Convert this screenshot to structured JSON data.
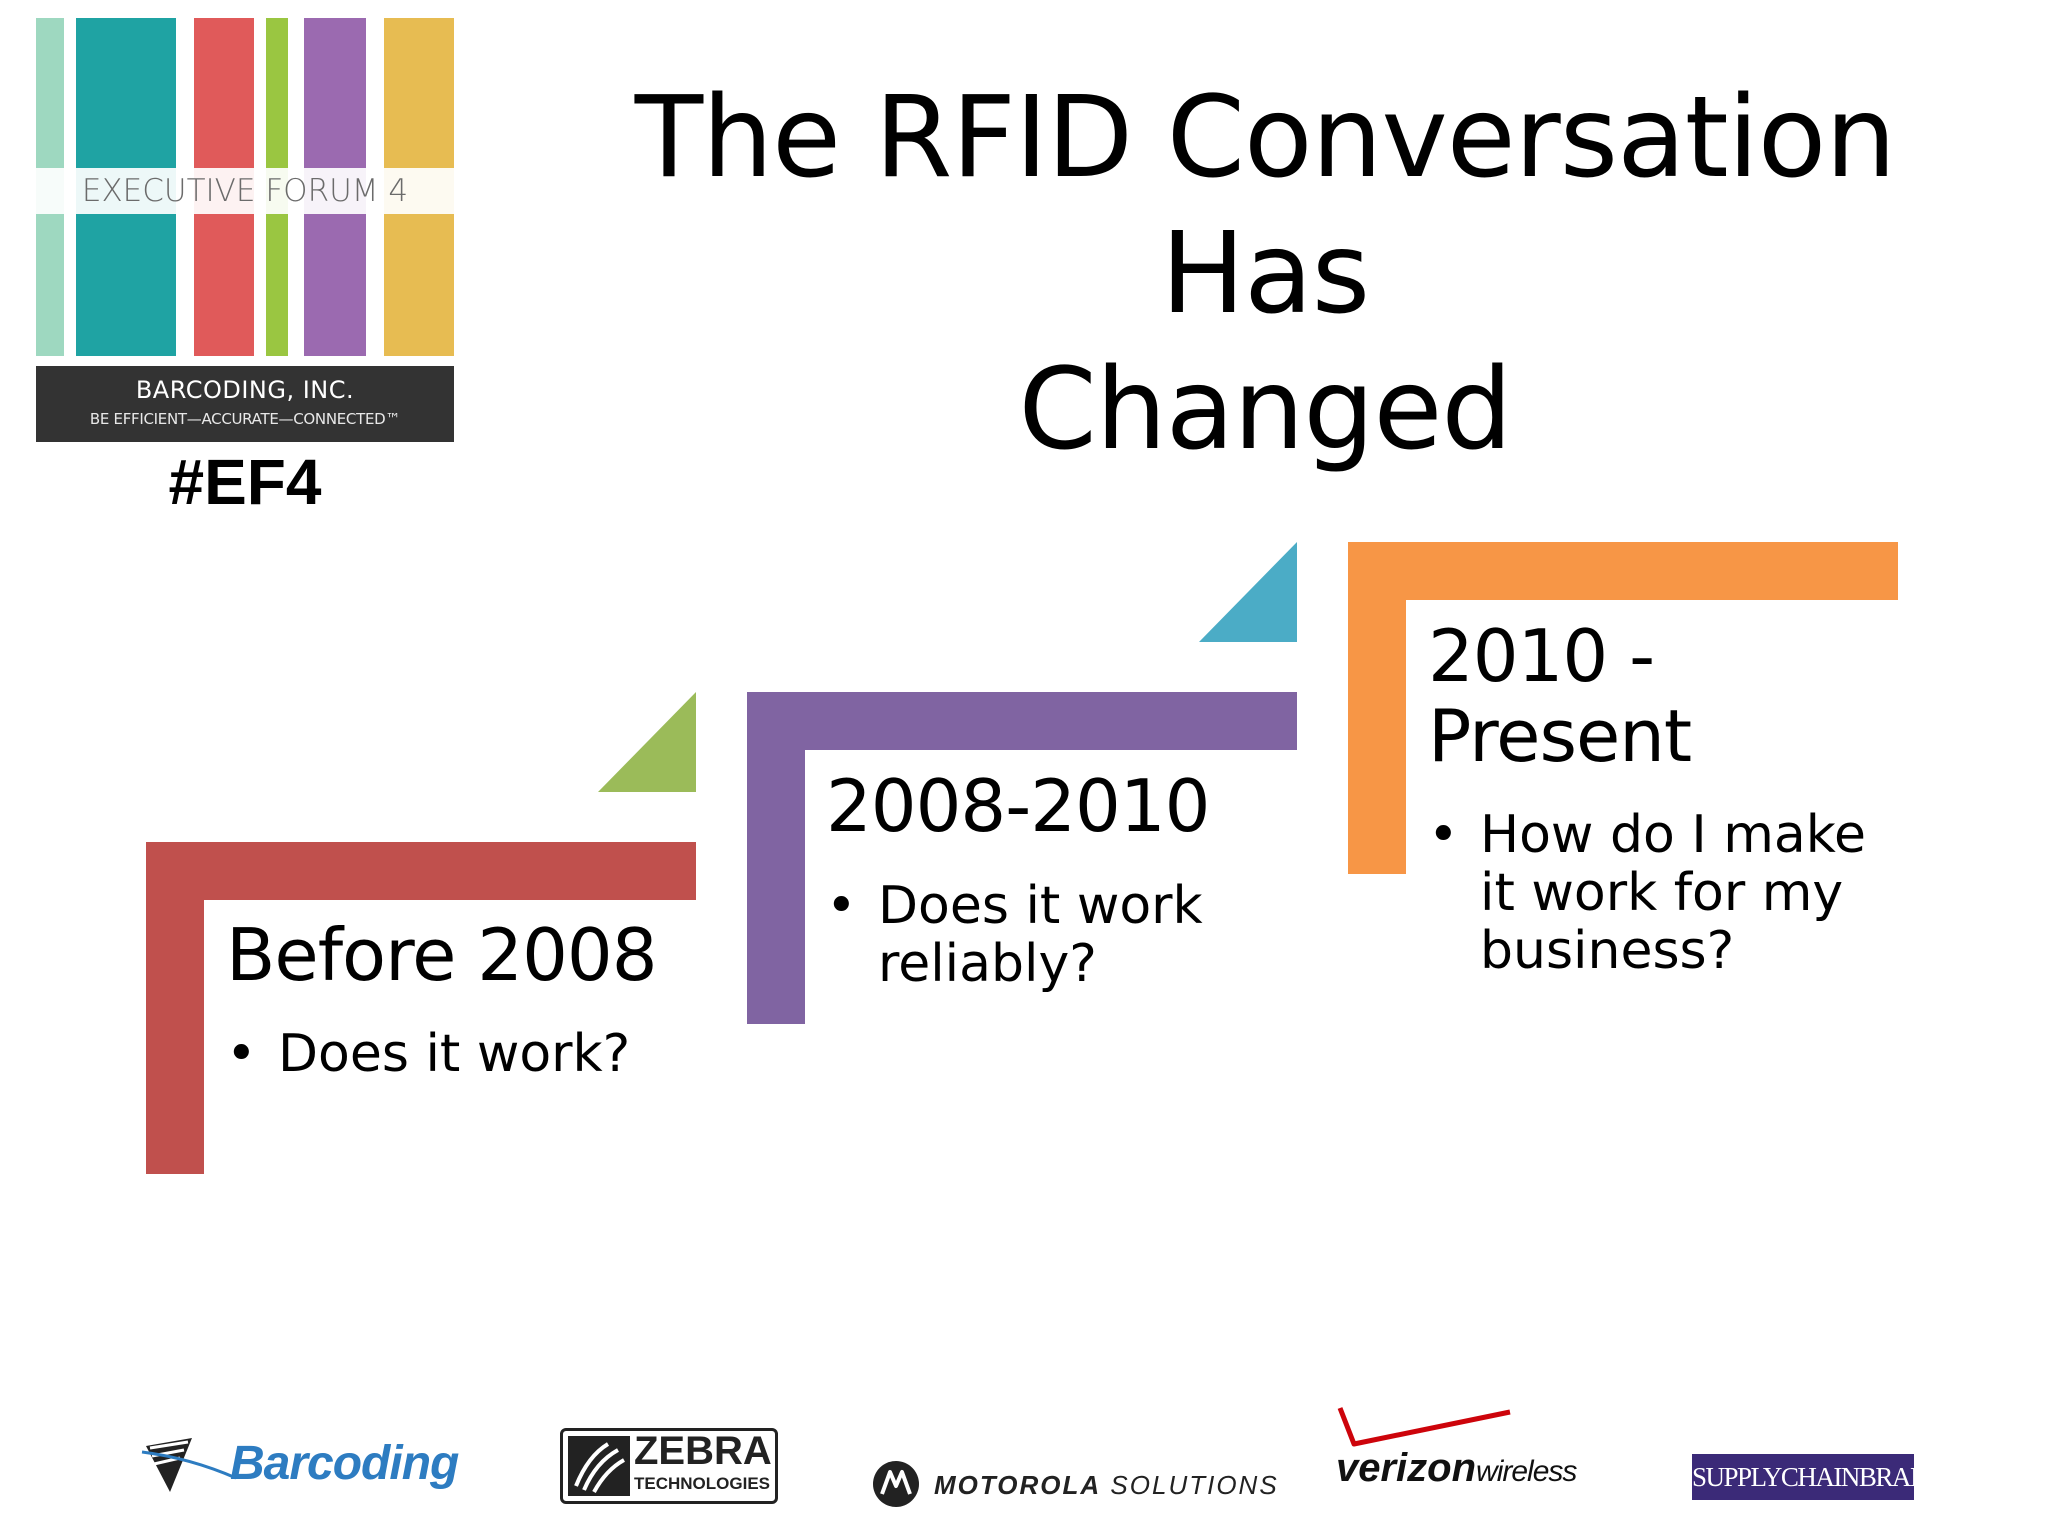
{
  "logo": {
    "band_text": "EXECUTIVE FORUM 4",
    "company": "BARCODING, INC.",
    "tagline": "BE EFFICIENT—ACCURATE—CONNECTED™",
    "hashtag": "#EF4",
    "stripe_colors": [
      "#9ed8c0",
      "#1fa3a3",
      "#e05a5a",
      "#9ac641",
      "#9b6ab0",
      "#e7bc52"
    ]
  },
  "title": {
    "line1": "The RFID Conversation Has",
    "line2": "Changed"
  },
  "stages": [
    {
      "heading": "Before 2008",
      "bullets": [
        "Does it work?"
      ],
      "color": "#c0504d",
      "accent_color": "#9bbb59"
    },
    {
      "heading": "2008-2010",
      "bullets": [
        "Does it work reliably?"
      ],
      "color": "#8064a2",
      "accent_color": "#4bacc6"
    },
    {
      "heading_lines": [
        "2010 -",
        "Present"
      ],
      "bullets": [
        "How do I make it work for my business?"
      ],
      "color": "#f79646"
    }
  ],
  "sponsors": {
    "barcoding": "Barcoding",
    "zebra": {
      "name": "ZEBRA",
      "sub": "TECHNOLOGIES"
    },
    "motorola": {
      "bold": "MOTOROLA",
      "light": "SOLUTIONS"
    },
    "verizon": {
      "bold": "verizon",
      "light": "wireless",
      "check_color": "#cd040b"
    },
    "supplychainbrain": "SUPPLYCHAINBRAIN"
  }
}
